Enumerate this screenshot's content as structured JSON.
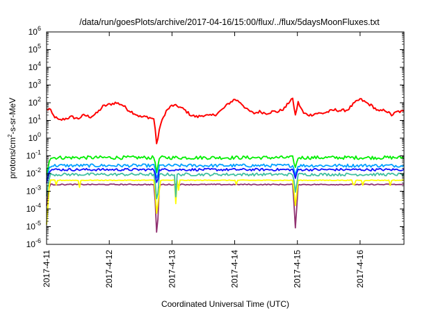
{
  "chart_data": {
    "type": "line",
    "title": "/data/run/goesPlots/archive/2017-04-16/15:00/flux/../flux/5daysMoonFluxes.txt",
    "xlabel": "Coordinated Universal Time (UTC)",
    "ylabel_parts": {
      "pre": "protons/cm",
      "sup": "2",
      "post": "-s-sr-MeV"
    },
    "x_unit": "days since 2017-4-11 00:00 UTC",
    "xlim": [
      0,
      5.7
    ],
    "x_ticks": [
      {
        "x": 0,
        "label": "2017-4-11"
      },
      {
        "x": 1,
        "label": "2017-4-12"
      },
      {
        "x": 2,
        "label": "2017-4-13"
      },
      {
        "x": 3,
        "label": "2017-4-14"
      },
      {
        "x": 4,
        "label": "2017-4-15"
      },
      {
        "x": 5,
        "label": "2017-4-16"
      }
    ],
    "y_scale": "log",
    "ylim_exponent": [
      -6,
      6
    ],
    "y_tick_base": "10",
    "y_tick_exponents": [
      -6,
      -5,
      -4,
      -3,
      -2,
      -1,
      0,
      1,
      2,
      3,
      4,
      5,
      6
    ],
    "grid": false,
    "legend": "none",
    "dips": [
      {
        "x": 0.15,
        "depth": 0.35,
        "series": [
          5
        ]
      },
      {
        "x": 0.53,
        "depth": 0.55,
        "series": [
          5
        ]
      },
      {
        "x": 1.8,
        "depth": 0.5,
        "series": [
          5
        ]
      },
      {
        "x": 2.06,
        "depth": 1.4,
        "series": [
          5,
          4
        ]
      },
      {
        "x": 2.1,
        "depth": 0.8,
        "series": [
          5
        ]
      },
      {
        "x": 3.03,
        "depth": 0.35,
        "series": [
          5
        ]
      },
      {
        "x": 4.9,
        "depth": 0.9,
        "series": [
          5
        ]
      },
      {
        "x": 5.05,
        "depth": 0.6,
        "series": [
          5
        ]
      },
      {
        "x": 5.48,
        "depth": 0.3,
        "series": [
          5
        ]
      }
    ],
    "events": [
      {
        "x": 0.0,
        "width": 0.05
      },
      {
        "x": 1.76,
        "width": 0.04
      },
      {
        "x": 3.97,
        "width": 0.04
      }
    ],
    "series": [
      {
        "color": "#ff0000",
        "base_log10": 1.2,
        "noise_log10": 0.08,
        "event_drops_log10": [
          0.4,
          1.4,
          0.9
        ],
        "x": [
          0,
          0.1,
          0.2,
          0.3,
          0.4,
          0.5,
          0.6,
          0.7,
          0.8,
          0.9,
          1.0,
          1.1,
          1.2,
          1.3,
          1.4,
          1.5,
          1.6,
          1.7,
          1.75,
          1.8,
          1.9,
          2.0,
          2.1,
          2.2,
          2.3,
          2.4,
          2.5,
          2.6,
          2.7,
          2.8,
          2.9,
          3.0,
          3.1,
          3.2,
          3.3,
          3.4,
          3.5,
          3.6,
          3.7,
          3.8,
          3.9,
          4.0,
          4.1,
          4.2,
          4.3,
          4.4,
          4.5,
          4.6,
          4.7,
          4.8,
          4.9,
          5.0,
          5.1,
          5.2,
          5.3,
          5.4,
          5.5,
          5.6,
          5.7
        ],
        "log10_y": [
          2.0,
          1.3,
          1.0,
          1.1,
          1.2,
          1.1,
          1.3,
          1.2,
          1.4,
          1.8,
          1.9,
          2.0,
          1.9,
          1.6,
          1.4,
          1.2,
          1.2,
          1.1,
          0.9,
          0.6,
          1.5,
          1.85,
          1.8,
          1.6,
          1.3,
          1.2,
          1.3,
          1.25,
          1.35,
          1.6,
          1.95,
          2.2,
          2.0,
          1.6,
          1.4,
          1.5,
          1.4,
          1.5,
          1.5,
          1.7,
          2.2,
          2.1,
          1.4,
          1.3,
          1.4,
          1.4,
          1.5,
          1.6,
          1.55,
          1.6,
          1.95,
          2.2,
          2.0,
          1.8,
          1.5,
          1.6,
          1.3,
          1.5,
          1.5
        ]
      },
      {
        "color": "#00ee00",
        "base_log10": -1.1,
        "noise_log10": 0.1,
        "event_drops_log10": [
          0.9,
          0.9,
          0.6
        ]
      },
      {
        "color": "#00a0ff",
        "base_log10": -1.55,
        "noise_log10": 0.09,
        "event_drops_log10": [
          0.8,
          0.8,
          0.5
        ]
      },
      {
        "color": "#1010ff",
        "base_log10": -1.78,
        "noise_log10": 0.07,
        "event_drops_log10": [
          0.7,
          0.8,
          0.5
        ]
      },
      {
        "color": "#40c0a0",
        "base_log10": -2.05,
        "noise_log10": 0.08,
        "event_drops_log10": [
          1.2,
          1.7,
          1.0
        ]
      },
      {
        "color": "#ffff00",
        "base_log10": -2.38,
        "noise_log10": 0.02,
        "event_drops_log10": [
          2.5,
          2.2,
          1.5
        ]
      },
      {
        "color": "#903070",
        "base_log10": -2.62,
        "noise_log10": 0.03,
        "event_drops_log10": [
          1.2,
          3.2,
          2.6
        ]
      }
    ]
  }
}
